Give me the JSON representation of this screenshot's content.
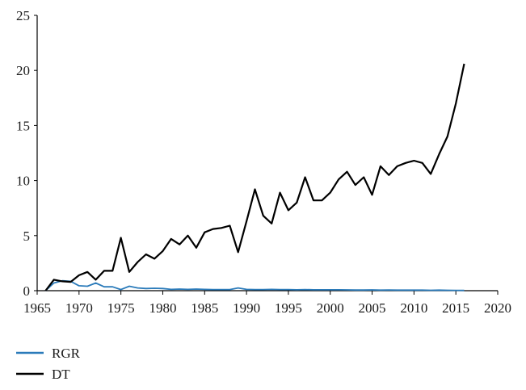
{
  "chart_data": {
    "type": "line",
    "title": "",
    "xlabel": "",
    "ylabel": "",
    "xlim": [
      1965,
      2020
    ],
    "ylim": [
      0,
      25
    ],
    "x_ticks": [
      "1965",
      "1970",
      "1975",
      "1980",
      "1985",
      "1990",
      "1995",
      "2000",
      "2005",
      "2010",
      "2015",
      "2020"
    ],
    "y_ticks": [
      "0",
      "5",
      "10",
      "15",
      "20",
      "25"
    ],
    "grid": false,
    "legend_position": "bottom-left",
    "series": [
      {
        "name": "RGR",
        "color": "#2b7bba",
        "x": [
          1966,
          1967,
          1968,
          1969,
          1970,
          1971,
          1972,
          1973,
          1974,
          1975,
          1976,
          1977,
          1978,
          1979,
          1980,
          1981,
          1982,
          1983,
          1984,
          1985,
          1986,
          1987,
          1988,
          1989,
          1990,
          1991,
          1992,
          1993,
          1994,
          1995,
          1996,
          1997,
          1998,
          1999,
          2000,
          2001,
          2002,
          2003,
          2004,
          2005,
          2006,
          2007,
          2008,
          2009,
          2010,
          2011,
          2012,
          2013,
          2014,
          2015,
          2016
        ],
        "values": [
          0,
          0.7,
          0.9,
          0.85,
          0.45,
          0.4,
          0.7,
          0.35,
          0.35,
          0.1,
          0.4,
          0.25,
          0.2,
          0.22,
          0.2,
          0.12,
          0.15,
          0.12,
          0.15,
          0.12,
          0.1,
          0.1,
          0.1,
          0.25,
          0.12,
          0.1,
          0.1,
          0.12,
          0.1,
          0.1,
          0.08,
          0.1,
          0.08,
          0.08,
          0.08,
          0.08,
          0.07,
          0.06,
          0.06,
          0.07,
          0.05,
          0.06,
          0.05,
          0.05,
          0.05,
          0.05,
          0.04,
          0.05,
          0.04,
          0.03,
          0.02
        ]
      },
      {
        "name": "DT",
        "color": "#000000",
        "x": [
          1966,
          1967,
          1968,
          1969,
          1970,
          1971,
          1972,
          1973,
          1974,
          1975,
          1976,
          1977,
          1978,
          1979,
          1980,
          1981,
          1982,
          1983,
          1984,
          1985,
          1986,
          1987,
          1988,
          1989,
          1990,
          1991,
          1992,
          1993,
          1994,
          1995,
          1996,
          1997,
          1998,
          1999,
          2000,
          2001,
          2002,
          2003,
          2004,
          2005,
          2006,
          2007,
          2008,
          2009,
          2010,
          2011,
          2012,
          2013,
          2014,
          2015,
          2016
        ],
        "values": [
          0,
          1.0,
          0.85,
          0.8,
          1.4,
          1.7,
          1.0,
          1.8,
          1.8,
          4.8,
          1.7,
          2.6,
          3.3,
          2.9,
          3.6,
          4.7,
          4.2,
          5.0,
          3.9,
          5.3,
          5.6,
          5.7,
          5.9,
          3.5,
          6.3,
          9.2,
          6.8,
          6.1,
          8.9,
          7.3,
          8.0,
          10.3,
          8.2,
          8.2,
          8.9,
          10.1,
          10.8,
          9.6,
          10.3,
          8.7,
          11.3,
          10.5,
          11.3,
          11.6,
          11.8,
          11.6,
          10.6,
          12.4,
          14.0,
          17.0,
          20.6
        ]
      }
    ]
  }
}
